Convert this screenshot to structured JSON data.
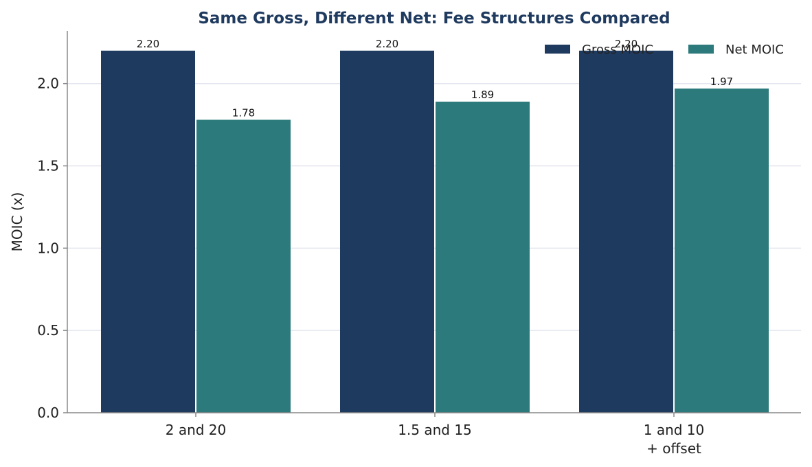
{
  "chart_data": {
    "type": "bar",
    "title": "Same Gross, Different Net: Fee Structures Compared",
    "xlabel": "",
    "ylabel": "MOIC (x)",
    "categories": [
      [
        "2 and 20"
      ],
      [
        "1.5 and 15"
      ],
      [
        "1 and 10",
        "+ offset"
      ]
    ],
    "series": [
      {
        "name": "Gross MOIC",
        "values": [
          2.2,
          2.2,
          2.2
        ],
        "color": "#1f3a5f"
      },
      {
        "name": "Net MOIC",
        "values": [
          1.78,
          1.89,
          1.97
        ],
        "color": "#2c7a7b"
      }
    ],
    "value_labels": [
      [
        "2.20",
        "2.20",
        "2.20"
      ],
      [
        "1.78",
        "1.89",
        "1.97"
      ]
    ],
    "ylim": [
      0,
      2.32
    ],
    "yticks": [
      0.0,
      0.5,
      1.0,
      1.5,
      2.0
    ],
    "ytick_labels": [
      "0.0",
      "0.5",
      "1.0",
      "1.5",
      "2.0"
    ],
    "grid": {
      "y": true,
      "color": "#e3e6ee"
    },
    "legend": "top-right",
    "axis_color": "#888888"
  }
}
